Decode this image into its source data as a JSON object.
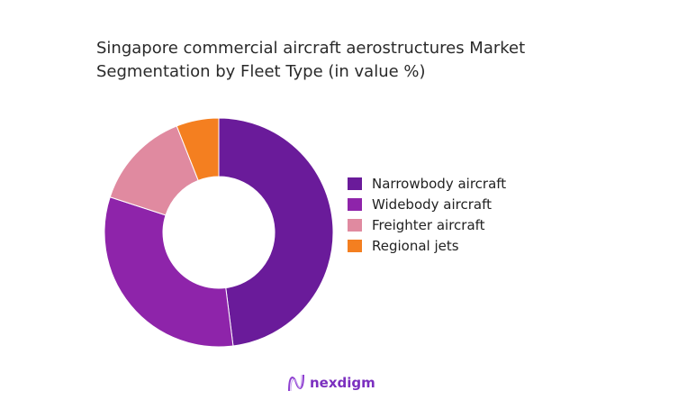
{
  "chart_data": {
    "type": "pie",
    "variant": "donut",
    "title": "Singapore commercial aircraft aerostructures Market Segmentation by Fleet Type (in value %)",
    "title_lines": [
      "Singapore commercial aircraft aerostructures Market",
      "Segmentation by Fleet Type (in value %)"
    ],
    "categories": [
      "Narrowbody aircraft",
      "Widebody aircraft",
      "Freighter aircraft",
      "Regional jets"
    ],
    "values": [
      48,
      32,
      14,
      6
    ],
    "colors": [
      "#6a1b9a",
      "#8e24aa",
      "#e08aa0",
      "#f47f20"
    ],
    "legend_position": "right"
  },
  "branding": {
    "logo_text": "nexdigm",
    "logo_color": "#7b2fbf"
  }
}
